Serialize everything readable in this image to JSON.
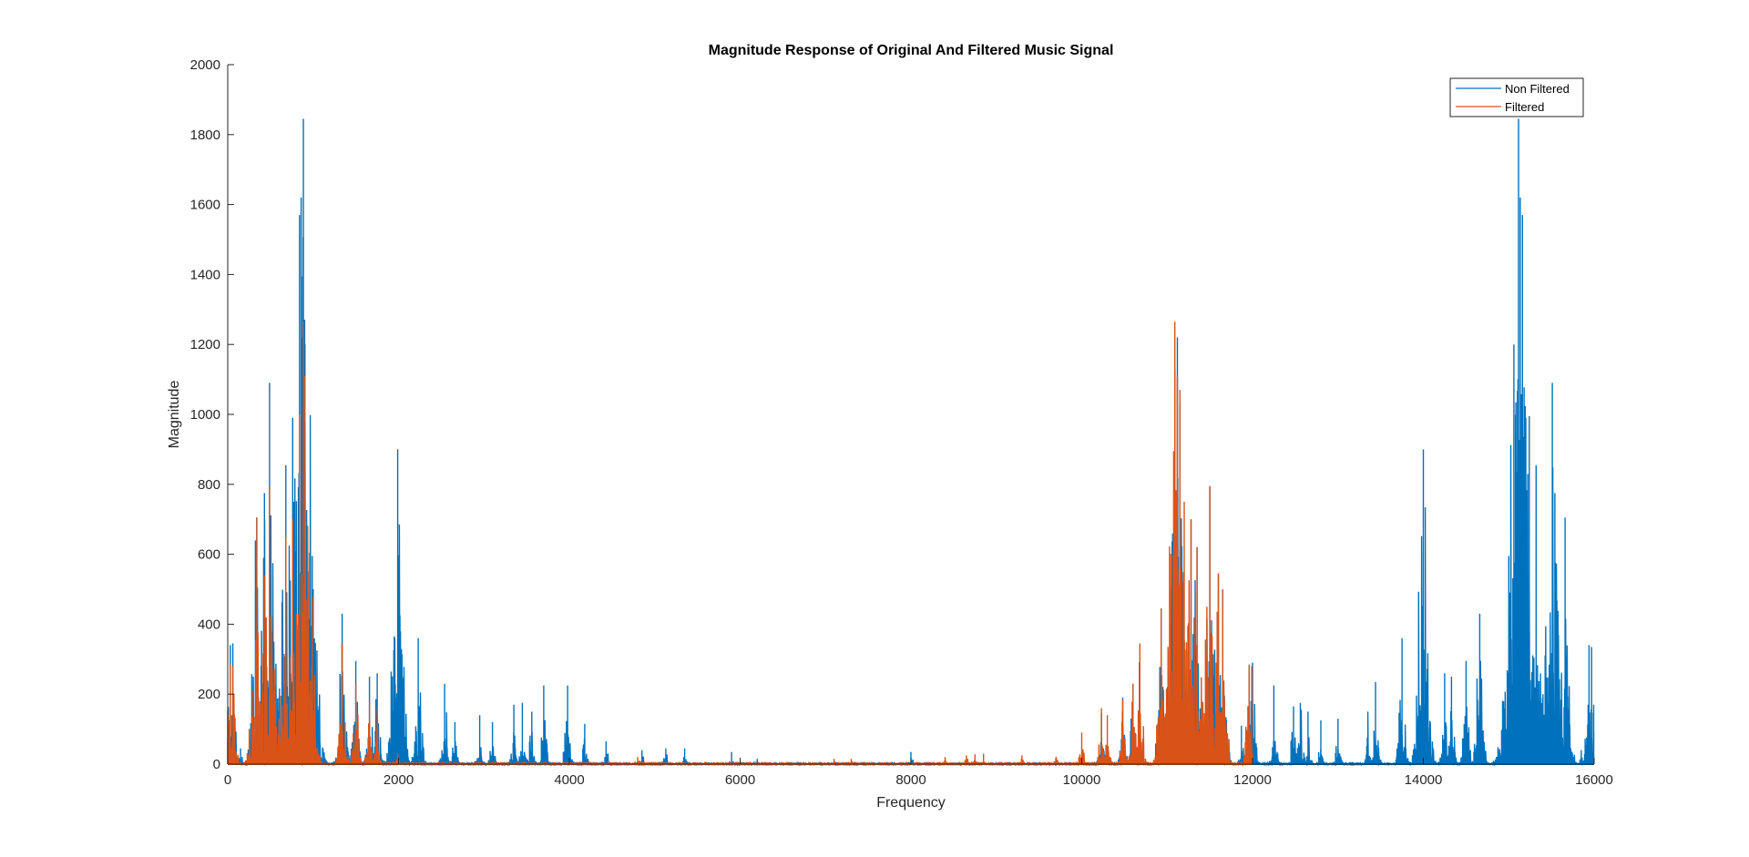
{
  "chart_data": {
    "type": "line",
    "title": "Magnitude Response of Original And Filtered Music Signal",
    "xlabel": "Frequency",
    "ylabel": "Magnitude",
    "xlim": [
      0,
      16000
    ],
    "ylim": [
      0,
      2000
    ],
    "xticks": [
      0,
      2000,
      4000,
      6000,
      8000,
      10000,
      12000,
      14000,
      16000
    ],
    "yticks": [
      0,
      200,
      400,
      600,
      800,
      1000,
      1200,
      1400,
      1600,
      1800,
      2000
    ],
    "xtick_labels": [
      "0",
      "2000",
      "4000",
      "6000",
      "8000",
      "10000",
      "12000",
      "14000",
      "16000"
    ],
    "ytick_labels": [
      "0",
      "200",
      "400",
      "600",
      "800",
      "1000",
      "1200",
      "1400",
      "1600",
      "1800",
      "2000"
    ],
    "grid": false,
    "legend_position": "top-right",
    "series": [
      {
        "name": "Non Filtered",
        "color": "#0072BD",
        "peaks": [
          [
            30,
            340
          ],
          [
            60,
            345
          ],
          [
            100,
            40
          ],
          [
            150,
            45
          ],
          [
            340,
            705
          ],
          [
            430,
            775
          ],
          [
            460,
            240
          ],
          [
            490,
            1090
          ],
          [
            520,
            100
          ],
          [
            600,
            190
          ],
          [
            680,
            855
          ],
          [
            720,
            200
          ],
          [
            760,
            990
          ],
          [
            800,
            280
          ],
          [
            840,
            1570
          ],
          [
            860,
            1620
          ],
          [
            885,
            1845
          ],
          [
            905,
            1200
          ],
          [
            950,
            300
          ],
          [
            990,
            595
          ],
          [
            1000,
            500
          ],
          [
            1340,
            430
          ],
          [
            1500,
            295
          ],
          [
            1660,
            250
          ],
          [
            1750,
            260
          ],
          [
            1990,
            900
          ],
          [
            2230,
            360
          ],
          [
            2540,
            230
          ],
          [
            2660,
            120
          ],
          [
            2950,
            140
          ],
          [
            3100,
            120
          ],
          [
            3350,
            170
          ],
          [
            3450,
            175
          ],
          [
            3560,
            150
          ],
          [
            3700,
            225
          ],
          [
            3980,
            225
          ],
          [
            4180,
            115
          ],
          [
            4430,
            65
          ],
          [
            4850,
            40
          ],
          [
            5130,
            45
          ],
          [
            5350,
            45
          ],
          [
            5900,
            35
          ],
          [
            6200,
            15
          ],
          [
            8000,
            35
          ],
          [
            9700,
            20
          ],
          [
            10230,
            145
          ],
          [
            10480,
            190
          ],
          [
            10600,
            230
          ],
          [
            10930,
            445
          ],
          [
            11090,
            1130
          ],
          [
            11120,
            1220
          ],
          [
            11150,
            1030
          ],
          [
            11280,
            700
          ],
          [
            11350,
            620
          ],
          [
            11500,
            795
          ],
          [
            11600,
            545
          ],
          [
            11650,
            500
          ],
          [
            11870,
            110
          ],
          [
            11960,
            280
          ],
          [
            12000,
            290
          ],
          [
            12250,
            225
          ],
          [
            12480,
            165
          ],
          [
            12560,
            175
          ],
          [
            12650,
            150
          ],
          [
            12800,
            125
          ],
          [
            13000,
            130
          ],
          [
            13350,
            150
          ],
          [
            13440,
            235
          ],
          [
            13750,
            360
          ],
          [
            14000,
            900
          ],
          [
            14250,
            260
          ],
          [
            14330,
            250
          ],
          [
            14500,
            295
          ],
          [
            14660,
            430
          ],
          [
            15000,
            595
          ],
          [
            15010,
            490
          ],
          [
            15060,
            1200
          ],
          [
            15115,
            1845
          ],
          [
            15135,
            1620
          ],
          [
            15160,
            1570
          ],
          [
            15200,
            990
          ],
          [
            15240,
            995
          ],
          [
            15320,
            855
          ],
          [
            15400,
            200
          ],
          [
            15510,
            1090
          ],
          [
            15540,
            775
          ],
          [
            15660,
            705
          ],
          [
            15850,
            40
          ],
          [
            15940,
            340
          ],
          [
            15970,
            335
          ],
          [
            15995,
            170
          ]
        ]
      },
      {
        "name": "Filtered",
        "color": "#D95319",
        "peaks": [
          [
            30,
            285
          ],
          [
            60,
            280
          ],
          [
            340,
            705
          ],
          [
            430,
            540
          ],
          [
            490,
            795
          ],
          [
            520,
            100
          ],
          [
            600,
            130
          ],
          [
            680,
            650
          ],
          [
            760,
            700
          ],
          [
            840,
            1000
          ],
          [
            885,
            1265
          ],
          [
            905,
            1110
          ],
          [
            950,
            200
          ],
          [
            990,
            480
          ],
          [
            1340,
            345
          ],
          [
            1500,
            230
          ],
          [
            1660,
            180
          ],
          [
            1750,
            160
          ],
          [
            1990,
            30
          ],
          [
            4800,
            20
          ],
          [
            7100,
            15
          ],
          [
            7300,
            15
          ],
          [
            8400,
            20
          ],
          [
            8650,
            25
          ],
          [
            8750,
            28
          ],
          [
            8850,
            30
          ],
          [
            9300,
            25
          ],
          [
            9700,
            20
          ],
          [
            10000,
            90
          ],
          [
            10230,
            160
          ],
          [
            10300,
            140
          ],
          [
            10480,
            185
          ],
          [
            10600,
            230
          ],
          [
            10680,
            345
          ],
          [
            10930,
            445
          ],
          [
            11090,
            1265
          ],
          [
            11120,
            1110
          ],
          [
            11150,
            1070
          ],
          [
            11200,
            750
          ],
          [
            11280,
            700
          ],
          [
            11350,
            620
          ],
          [
            11500,
            795
          ],
          [
            11600,
            545
          ],
          [
            11650,
            500
          ],
          [
            11960,
            285
          ],
          [
            11990,
            280
          ]
        ]
      }
    ]
  }
}
